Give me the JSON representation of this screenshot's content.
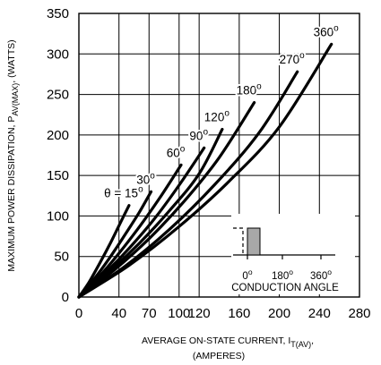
{
  "chart_data": {
    "type": "line",
    "xlabel": "AVERAGE ON-STATE CURRENT, I",
    "xlabel_sub": "T(AV)",
    "xlabel_tail": ",",
    "xlabel_line2": "(AMPERES)",
    "ylabel": "MAXIMUM POWER DISSIPATION, P",
    "ylabel_sub": "AV(MAX)",
    "ylabel_tail": ", (WATTS)",
    "xlim": [
      0,
      280
    ],
    "ylim": [
      0,
      350
    ],
    "xticks": [
      0,
      40,
      70,
      100,
      120,
      160,
      200,
      240,
      280
    ],
    "yticks": [
      0,
      50,
      100,
      150,
      200,
      250,
      300,
      350
    ],
    "grid": true,
    "series": [
      {
        "name": "θ = 15",
        "label_prefix": "θ = ",
        "angle": "15",
        "x": [
          0,
          10,
          20,
          30,
          40,
          50
        ],
        "y": [
          0,
          18,
          40,
          63,
          88,
          113
        ]
      },
      {
        "name": "30",
        "label_prefix": "",
        "angle": "30",
        "x": [
          0,
          15,
          30,
          45,
          60,
          72
        ],
        "y": [
          0,
          22,
          47,
          75,
          104,
          130
        ]
      },
      {
        "name": "60",
        "label_prefix": "",
        "angle": "60",
        "x": [
          0,
          20,
          40,
          60,
          80,
          102
        ],
        "y": [
          0,
          25,
          54,
          86,
          121,
          163
        ]
      },
      {
        "name": "90",
        "label_prefix": "",
        "angle": "90",
        "x": [
          0,
          25,
          50,
          75,
          100,
          125
        ],
        "y": [
          0,
          28,
          60,
          96,
          138,
          184
        ]
      },
      {
        "name": "120",
        "label_prefix": "",
        "angle": "120",
        "x": [
          0,
          30,
          60,
          90,
          120,
          143
        ],
        "y": [
          0,
          31,
          66,
          106,
          152,
          207
        ]
      },
      {
        "name": "180",
        "label_prefix": "",
        "angle": "180",
        "x": [
          0,
          35,
          70,
          105,
          140,
          175
        ],
        "y": [
          0,
          33,
          72,
          118,
          172,
          240
        ]
      },
      {
        "name": "270",
        "label_prefix": "",
        "angle": "270",
        "x": [
          0,
          45,
          90,
          135,
          180,
          218
        ],
        "y": [
          0,
          37,
          83,
          138,
          203,
          278
        ]
      },
      {
        "name": "360",
        "label_prefix": "",
        "angle": "360",
        "x": [
          0,
          50,
          100,
          150,
          200,
          252
        ],
        "y": [
          0,
          39,
          87,
          143,
          210,
          312
        ]
      }
    ],
    "inset": {
      "ticks": [
        "0",
        "180",
        "360"
      ],
      "tick_unit": "o",
      "caption": "CONDUCTION ANGLE",
      "bar_color": "#a8a8a8"
    }
  }
}
